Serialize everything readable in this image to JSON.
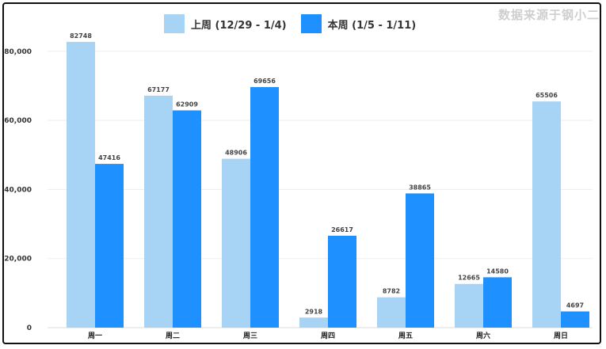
{
  "legend_position": "top",
  "source_text": "数据来源于钢小二",
  "colors": {
    "series_1": "#a7d3f4",
    "series_2": "#1e90ff",
    "grid": "#eeeeee",
    "axis": "#dddddd"
  },
  "chart_data": {
    "type": "bar",
    "title": "",
    "xlabel": "",
    "ylabel": "",
    "categories": [
      "周一",
      "周二",
      "周三",
      "周四",
      "周五",
      "周六",
      "周日"
    ],
    "series": [
      {
        "name": "上周 (12/29 - 1/4)",
        "values": [
          82748,
          67177,
          48906,
          2918,
          8782,
          12665,
          65506
        ]
      },
      {
        "name": "本周 (1/5 - 1/11)",
        "values": [
          47416,
          62909,
          69656,
          26617,
          38865,
          14580,
          4697
        ]
      }
    ],
    "yticks": [
      0,
      20000,
      40000,
      60000,
      80000
    ],
    "ytick_labels": [
      "0",
      "20,000",
      "40,000",
      "60,000",
      "80,000"
    ],
    "ylim": [
      0,
      88000
    ],
    "grid": true
  }
}
